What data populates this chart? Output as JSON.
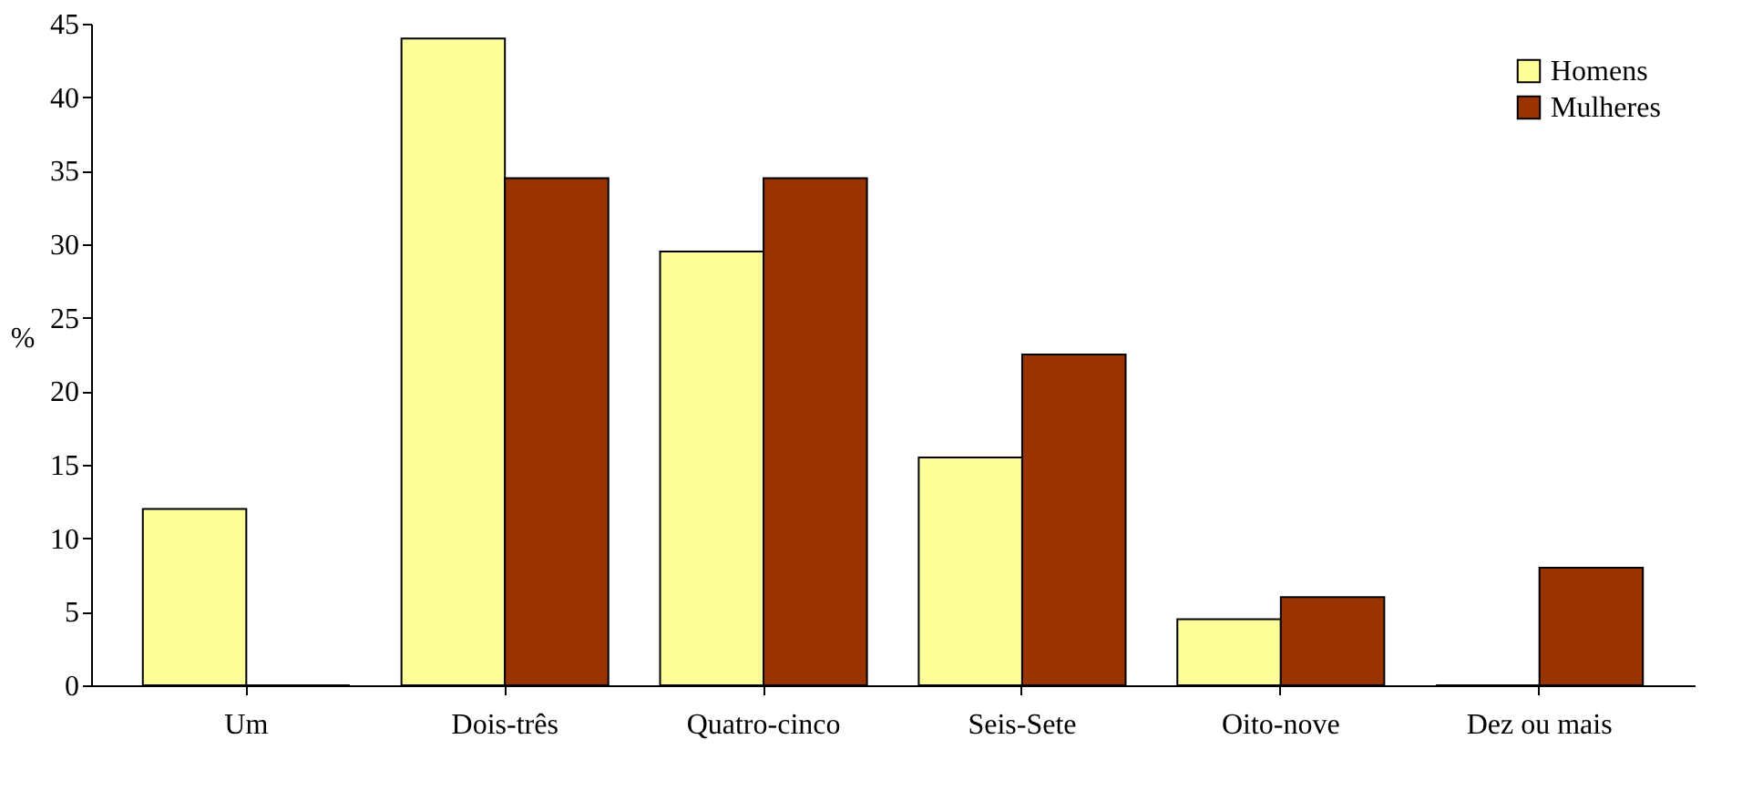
{
  "chart_data": {
    "type": "bar",
    "ylabel": "%",
    "categories": [
      "Um",
      "Dois-três",
      "Quatro-cinco",
      "Seis-Sete",
      "Oito-nove",
      "Dez ou mais"
    ],
    "series": [
      {
        "name": "Homens",
        "color": "#ffff99",
        "values": [
          12,
          44,
          29.5,
          15.5,
          4.5,
          0
        ]
      },
      {
        "name": "Mulheres",
        "color": "#993300",
        "values": [
          0,
          34.5,
          34.5,
          22.5,
          6,
          8
        ]
      }
    ],
    "ylim": [
      0,
      45
    ],
    "yticks": [
      0,
      5,
      10,
      15,
      20,
      25,
      30,
      35,
      40,
      45
    ],
    "grid": false,
    "legend": "top right"
  }
}
